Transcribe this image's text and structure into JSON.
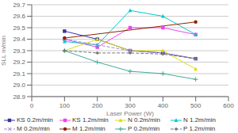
{
  "chart_data": {
    "type": "line",
    "xlabel": "Laser Power (W)",
    "ylabel": "SLL m/min",
    "x": [
      100,
      200,
      300,
      400,
      500
    ],
    "series": [
      {
        "name": "KS 0.2m/min",
        "color": "#3333aa",
        "marker": "square",
        "line_style": "solid",
        "values": [
          29.47,
          29.4,
          29.3,
          29.28,
          29.23
        ]
      },
      {
        "name": "KS 1.2m/min",
        "color": "#ee44ee",
        "marker": "square",
        "line_style": "solid",
        "values": [
          29.4,
          29.33,
          29.5,
          29.5,
          29.44
        ]
      },
      {
        "name": "N 0.2m/min",
        "color": "#dddd00",
        "marker": "triangle",
        "line_style": "solid",
        "values": [
          29.3,
          29.4,
          29.3,
          29.3,
          29.14
        ]
      },
      {
        "name": "N 1.2m/min",
        "color": "#00cccc",
        "marker": "triangle",
        "line_style": "solid",
        "values": [
          29.38,
          29.35,
          29.65,
          29.6,
          29.44
        ]
      },
      {
        "name": "M 0.2m/min",
        "color": "#aa88cc",
        "marker": "x",
        "line_style": "dashed",
        "values": [
          29.4,
          29.35,
          29.3,
          29.28,
          29.23
        ]
      },
      {
        "name": "M 1.2m/min",
        "color": "#8B2500",
        "marker": "circle",
        "line_style": "solid",
        "values": [
          29.41,
          null,
          null,
          null,
          29.55
        ]
      },
      {
        "name": "P 0.2m/min",
        "color": "#44aa99",
        "marker": "plus",
        "line_style": "solid",
        "values": [
          29.3,
          29.2,
          29.12,
          29.1,
          29.05
        ]
      },
      {
        "name": "P 1.2m/min",
        "color": "#777777",
        "marker": "diamond",
        "line_style": "dashed",
        "values": [
          29.3,
          29.28,
          29.28,
          29.27,
          29.23
        ]
      }
    ],
    "xlim": [
      0,
      600
    ],
    "ylim": [
      28.9,
      29.7
    ],
    "xticks": [
      0,
      100,
      200,
      300,
      400,
      500,
      600
    ],
    "yticks": [
      28.9,
      {
        "value": 29.0,
        "label": "29.0"
      },
      29.1,
      29.2,
      29.3,
      29.4,
      29.5,
      29.6,
      29.7
    ],
    "grid": true,
    "legend": "bottom"
  }
}
